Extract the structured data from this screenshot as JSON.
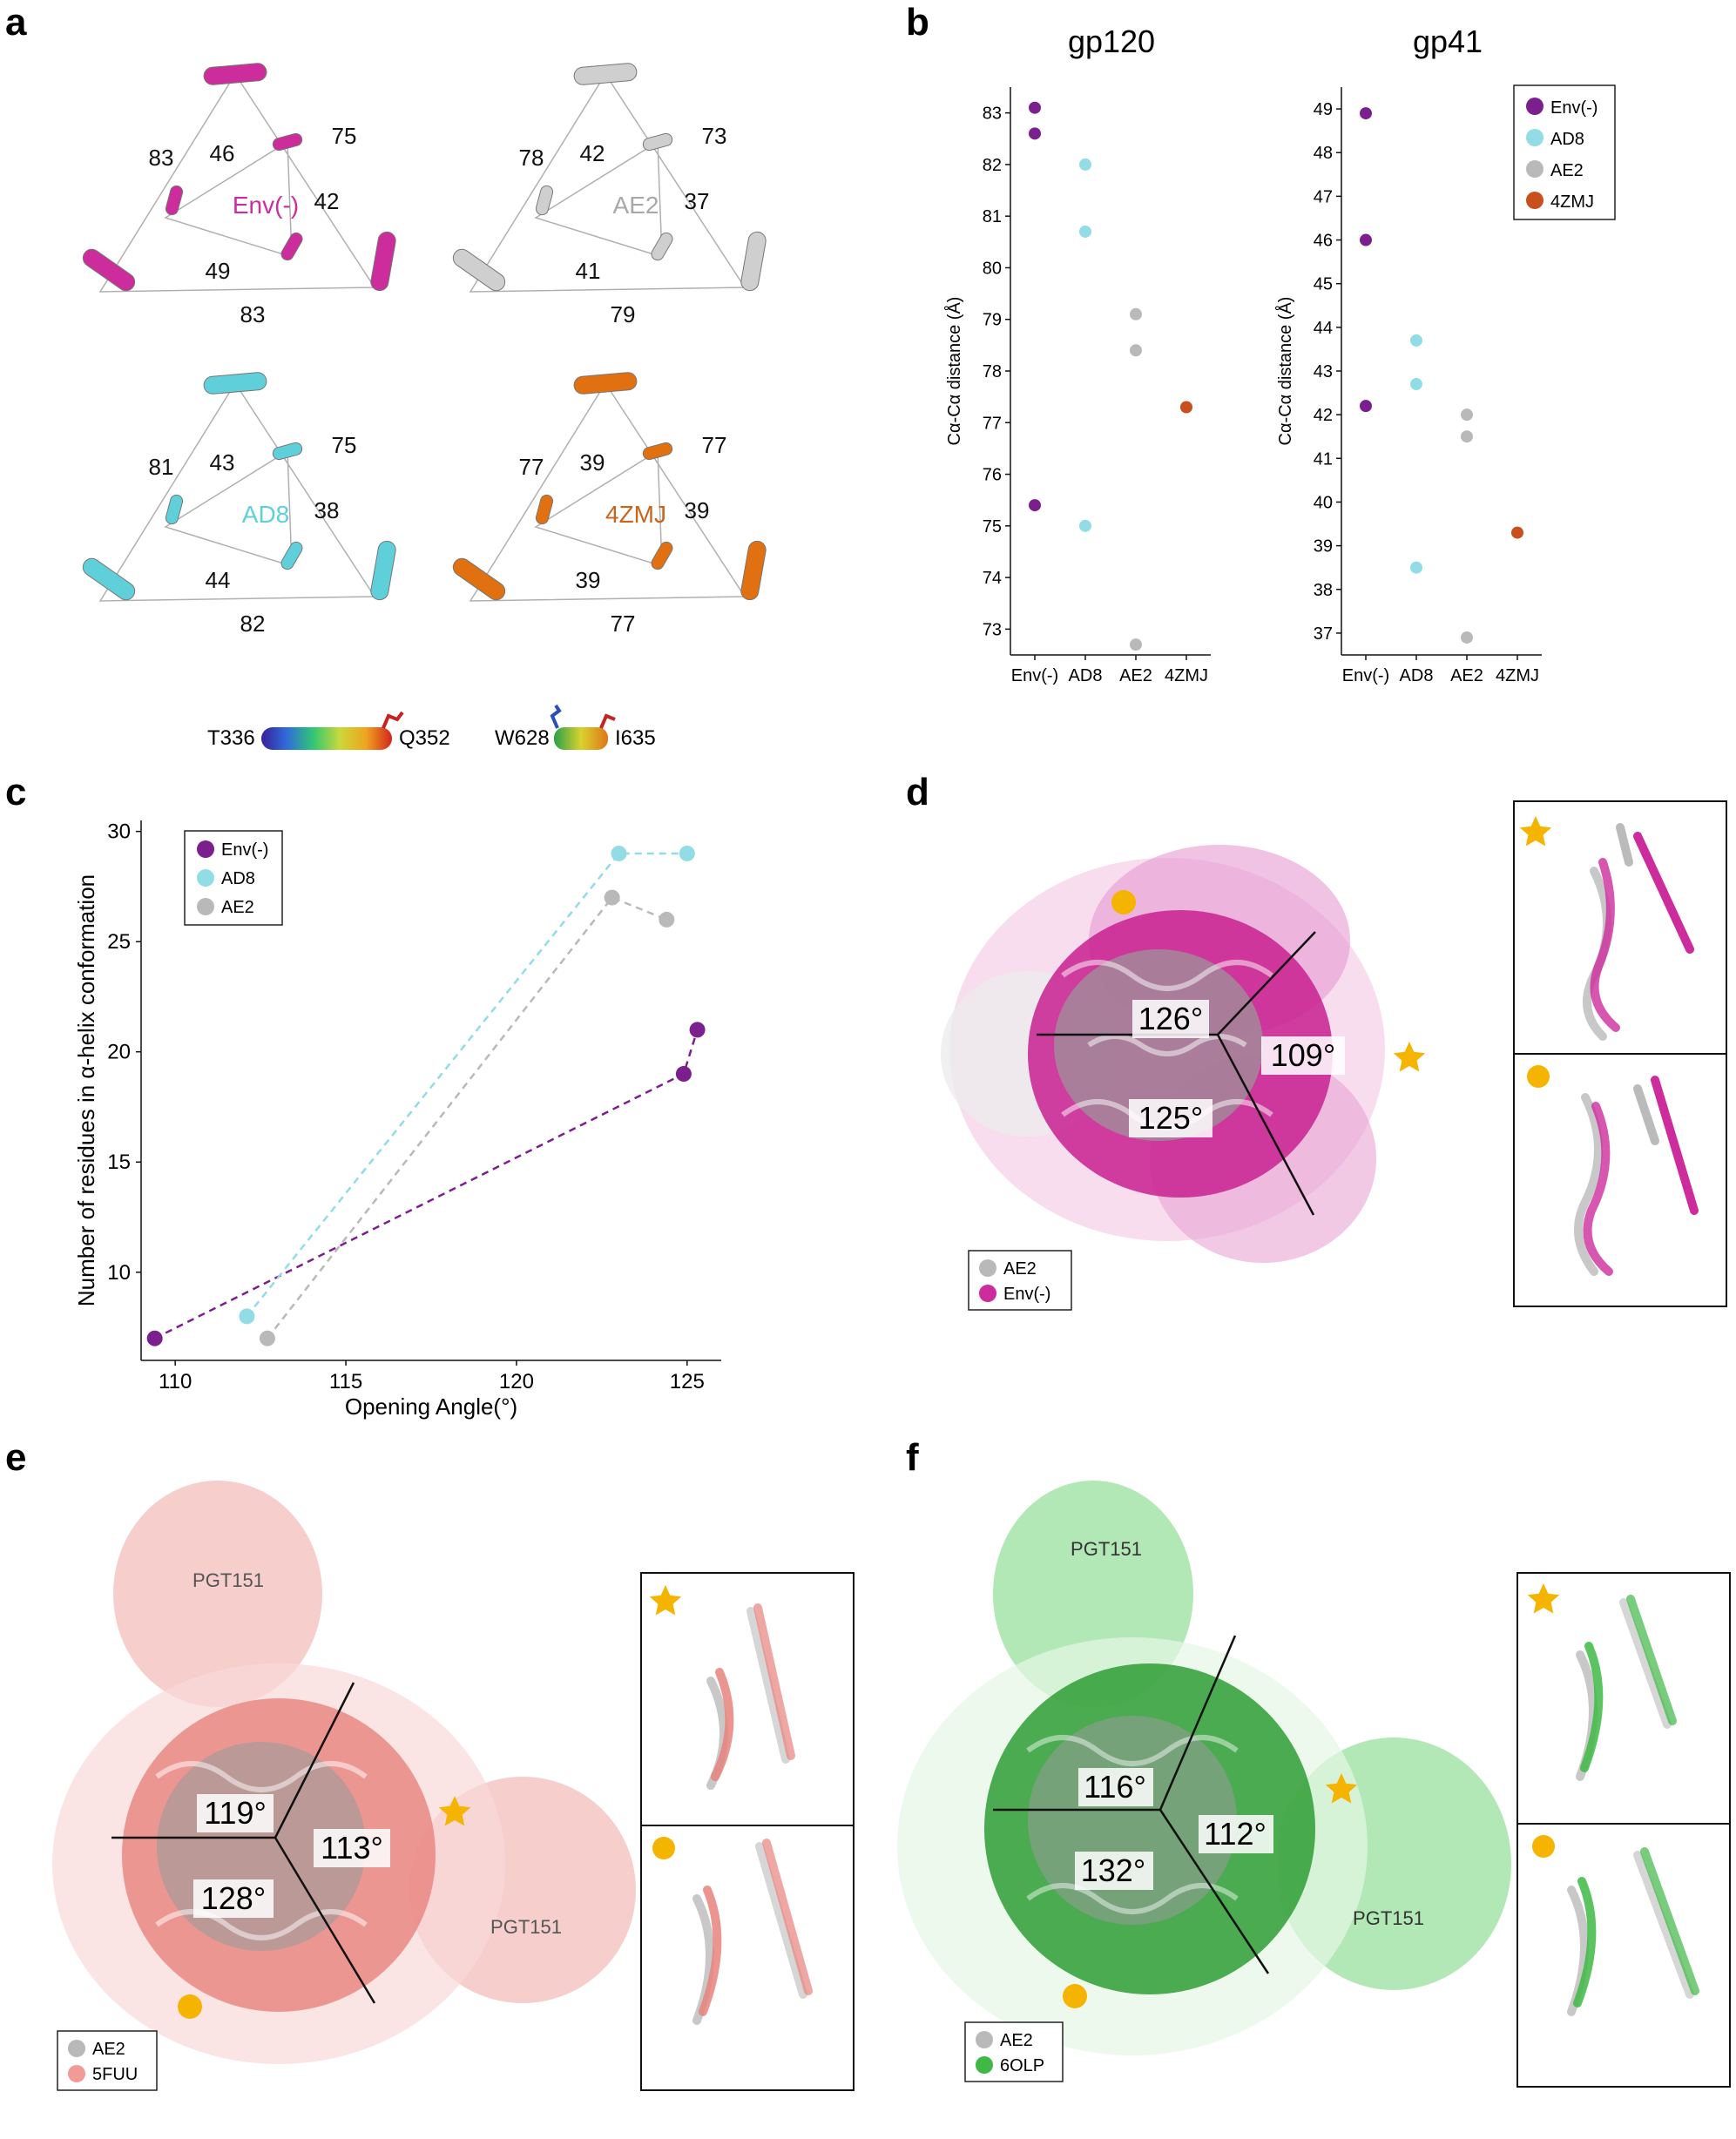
{
  "panel_labels": [
    "a",
    "b",
    "c",
    "d",
    "e",
    "f"
  ],
  "colors": {
    "envminus": "#7b1f8f",
    "ad8": "#92dce5",
    "ae2": "#b9b9b9",
    "zmj": "#c8501c",
    "magenta": "#cc2c9c",
    "cyan": "#5fd0da",
    "orange": "#e07010",
    "salmon": "#ec7f7a",
    "green": "#3fb845",
    "star": "#f5b400"
  },
  "panel_a": {
    "triangles": [
      {
        "label": "Env(-)",
        "outer": [
          "83",
          "75",
          "83"
        ],
        "inner": [
          "46",
          "42",
          "49"
        ]
      },
      {
        "label": "AE2",
        "outer": [
          "78",
          "73",
          "79"
        ],
        "inner": [
          "42",
          "37",
          "41"
        ]
      },
      {
        "label": "AD8",
        "outer": [
          "81",
          "75",
          "82"
        ],
        "inner": [
          "43",
          "38",
          "44"
        ]
      },
      {
        "label": "4ZMJ",
        "outer": [
          "77",
          "77",
          "77"
        ],
        "inner": [
          "39",
          "39",
          "39"
        ]
      }
    ],
    "legend_gp120": {
      "start": "T336",
      "end": "Q352"
    },
    "legend_gp41": {
      "start": "W628",
      "end": "I635"
    }
  },
  "chart_data": [
    {
      "type": "scatter",
      "title": "gp120",
      "ylabel": "Cα-Cα distance (Å)",
      "categories": [
        "Env(-)",
        "AD8",
        "AE2",
        "4ZMJ"
      ],
      "yticks": [
        "73",
        "74",
        "75",
        "76",
        "77",
        "78",
        "79",
        "80",
        "81",
        "82",
        "83"
      ],
      "ylim": [
        72.5,
        83.5
      ],
      "series": [
        {
          "name": "Env(-)",
          "x": "Env(-)",
          "values": [
            83.1,
            82.6,
            75.4
          ]
        },
        {
          "name": "AD8",
          "x": "AD8",
          "values": [
            82.0,
            80.7,
            75.0
          ]
        },
        {
          "name": "AE2",
          "x": "AE2",
          "values": [
            79.1,
            78.4,
            72.7
          ]
        },
        {
          "name": "4ZMJ",
          "x": "4ZMJ",
          "values": [
            77.3
          ]
        }
      ]
    },
    {
      "type": "scatter",
      "title": "gp41",
      "ylabel": "Cα-Cα distance (Å)",
      "categories": [
        "Env(-)",
        "AD8",
        "AE2",
        "4ZMJ"
      ],
      "yticks": [
        "37",
        "38",
        "39",
        "40",
        "41",
        "42",
        "43",
        "44",
        "45",
        "46",
        "47",
        "48",
        "49"
      ],
      "ylim": [
        36.5,
        49.5
      ],
      "series": [
        {
          "name": "Env(-)",
          "x": "Env(-)",
          "values": [
            48.9,
            46.0,
            42.2
          ]
        },
        {
          "name": "AD8",
          "x": "AD8",
          "values": [
            43.7,
            42.7,
            38.5
          ]
        },
        {
          "name": "AE2",
          "x": "AE2",
          "values": [
            42.0,
            41.5,
            36.9
          ]
        },
        {
          "name": "4ZMJ",
          "x": "4ZMJ",
          "values": [
            39.3
          ]
        }
      ],
      "legend": [
        "Env(-)",
        "AD8",
        "AE2",
        "4ZMJ"
      ]
    },
    {
      "type": "line",
      "xlabel": "Opening Angle(°)",
      "ylabel": "Number of residues in α-helix conformation",
      "xticks": [
        "110",
        "115",
        "120",
        "125"
      ],
      "yticks": [
        "10",
        "15",
        "20",
        "25",
        "30"
      ],
      "xlim": [
        109,
        126
      ],
      "ylim": [
        6,
        30.5
      ],
      "series": [
        {
          "name": "Env(-)",
          "points": [
            [
              109.4,
              7
            ],
            [
              124.9,
              19
            ],
            [
              125.3,
              21
            ]
          ]
        },
        {
          "name": "AD8",
          "points": [
            [
              112.1,
              8
            ],
            [
              123.0,
              29
            ],
            [
              125.0,
              29
            ]
          ]
        },
        {
          "name": "AE2",
          "points": [
            [
              112.7,
              7
            ],
            [
              122.8,
              27
            ],
            [
              124.4,
              26
            ]
          ]
        }
      ],
      "legend": [
        "Env(-)",
        "AD8",
        "AE2"
      ]
    }
  ],
  "panel_d": {
    "angles": [
      "126°",
      "109°",
      "125°"
    ],
    "legend": [
      "AE2",
      "Env(-)"
    ]
  },
  "panel_e": {
    "angles": [
      "119°",
      "113°",
      "128°"
    ],
    "legend": [
      "AE2",
      "5FUU"
    ],
    "antibody": "PGT151"
  },
  "panel_f": {
    "angles": [
      "116°",
      "112°",
      "132°"
    ],
    "legend": [
      "AE2",
      "6OLP"
    ],
    "antibody": "PGT151"
  }
}
